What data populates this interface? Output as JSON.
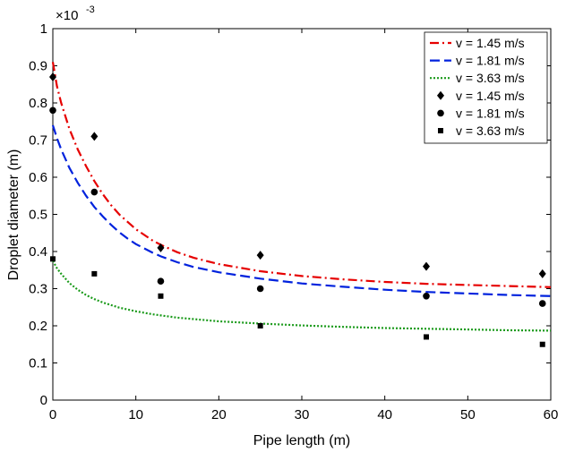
{
  "chart_data": {
    "type": "line",
    "xlabel": "Pipe length (m)",
    "ylabel": "Droplet diameter (m)",
    "y_multiplier_base": "×10",
    "y_multiplier_exponent": "-3",
    "xlim": [
      0,
      60
    ],
    "ylim": [
      0,
      1
    ],
    "x_ticks": [
      0,
      10,
      20,
      30,
      40,
      50,
      60
    ],
    "y_ticks": [
      0,
      0.1,
      0.2,
      0.3,
      0.4,
      0.5,
      0.6,
      0.7,
      0.8,
      0.9,
      1
    ],
    "x_tick_labels": [
      "0",
      "10",
      "20",
      "30",
      "40",
      "50",
      "60"
    ],
    "y_tick_labels": [
      "0",
      "0.1",
      "0.2",
      "0.3",
      "0.4",
      "0.5",
      "0.6",
      "0.7",
      "0.8",
      "0.9",
      "1"
    ],
    "grid": false,
    "legend_position": "top-right",
    "series": [
      {
        "name": "v = 1.45 m/s",
        "kind": "line",
        "style": "dash-dot",
        "color": "#e60000",
        "x": [
          0,
          0.5,
          1,
          2,
          3,
          4,
          5,
          6,
          7,
          8,
          9,
          10,
          12,
          13,
          15,
          17,
          20,
          25,
          30,
          35,
          40,
          45,
          50,
          55,
          60
        ],
        "y": [
          0.91,
          0.845,
          0.8,
          0.73,
          0.675,
          0.63,
          0.59,
          0.555,
          0.525,
          0.5,
          0.48,
          0.46,
          0.43,
          0.418,
          0.398,
          0.383,
          0.366,
          0.347,
          0.334,
          0.325,
          0.318,
          0.313,
          0.31,
          0.307,
          0.304
        ]
      },
      {
        "name": "v = 1.81 m/s",
        "kind": "line",
        "style": "dash",
        "color": "#0022dd",
        "x": [
          0,
          0.5,
          1,
          2,
          3,
          4,
          5,
          6,
          7,
          8,
          9,
          10,
          12,
          13,
          15,
          17,
          20,
          25,
          30,
          35,
          40,
          45,
          50,
          55,
          60
        ],
        "y": [
          0.74,
          0.705,
          0.675,
          0.625,
          0.585,
          0.55,
          0.52,
          0.495,
          0.472,
          0.452,
          0.435,
          0.42,
          0.397,
          0.387,
          0.371,
          0.358,
          0.344,
          0.327,
          0.314,
          0.305,
          0.297,
          0.291,
          0.287,
          0.283,
          0.28
        ]
      },
      {
        "name": "v = 3.63 m/s",
        "kind": "line",
        "style": "dot",
        "color": "#1a9a1a",
        "x": [
          0,
          0.5,
          1,
          2,
          3,
          4,
          5,
          6,
          8,
          10,
          12,
          15,
          20,
          25,
          30,
          35,
          40,
          45,
          50,
          55,
          60
        ],
        "y": [
          0.375,
          0.355,
          0.34,
          0.315,
          0.297,
          0.283,
          0.272,
          0.263,
          0.249,
          0.239,
          0.231,
          0.222,
          0.212,
          0.206,
          0.201,
          0.197,
          0.194,
          0.192,
          0.19,
          0.188,
          0.187
        ]
      },
      {
        "name": "v = 1.45 m/s",
        "kind": "scatter",
        "marker": "diamond",
        "color": "#000000",
        "x": [
          0,
          5,
          13,
          25,
          45,
          59
        ],
        "y": [
          0.87,
          0.71,
          0.41,
          0.39,
          0.36,
          0.34
        ]
      },
      {
        "name": "v = 1.81 m/s",
        "kind": "scatter",
        "marker": "circle",
        "color": "#000000",
        "x": [
          0,
          5,
          13,
          25,
          45,
          59
        ],
        "y": [
          0.78,
          0.56,
          0.32,
          0.3,
          0.28,
          0.26
        ]
      },
      {
        "name": "v = 3.63 m/s",
        "kind": "scatter",
        "marker": "square",
        "color": "#000000",
        "x": [
          0,
          5,
          13,
          25,
          45,
          59
        ],
        "y": [
          0.38,
          0.34,
          0.28,
          0.2,
          0.17,
          0.15
        ]
      }
    ]
  }
}
